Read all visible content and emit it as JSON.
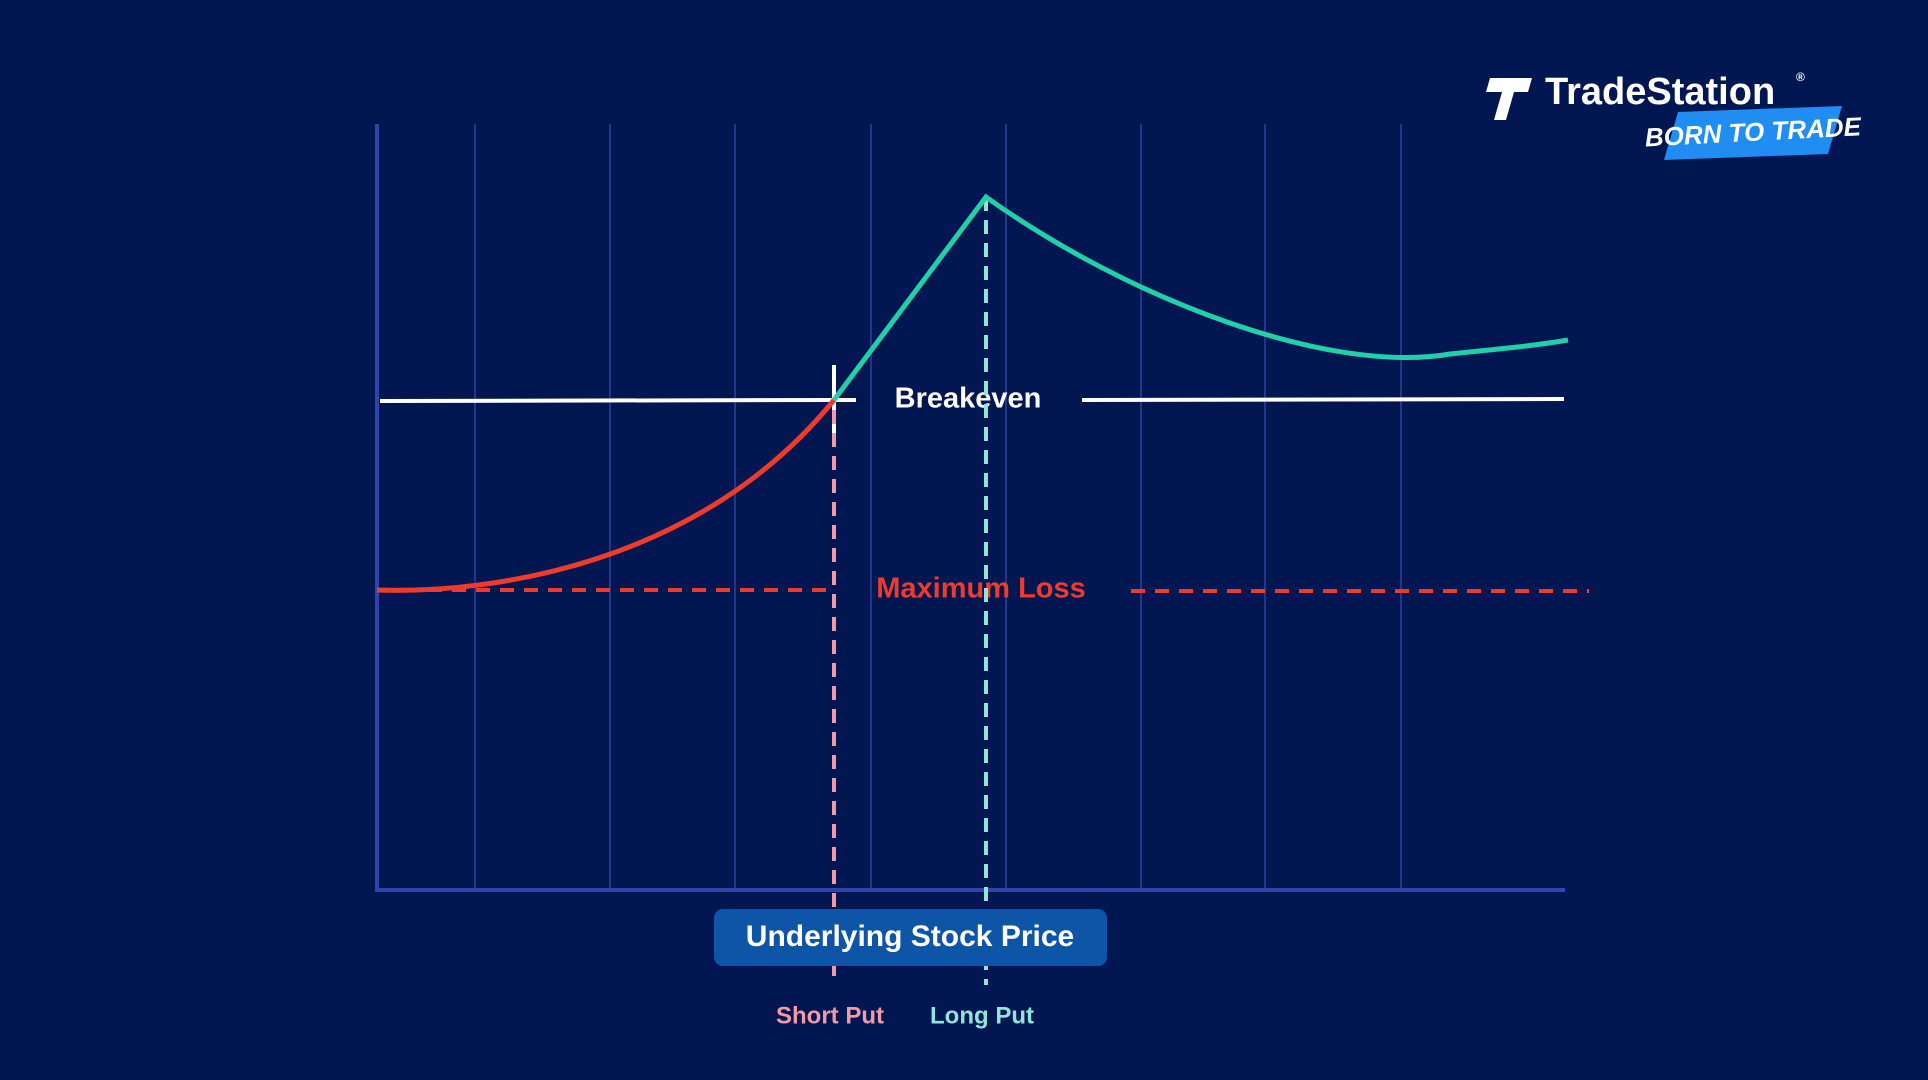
{
  "diagram": {
    "labels": {
      "breakeven": "Breakeven",
      "maximum_loss": "Maximum Loss",
      "x_axis": "Underlying Stock Price",
      "short_put": "Short Put",
      "long_put": "Long Put"
    },
    "logo": {
      "name": "TradeStation",
      "mark": "®",
      "tagline": "BORN TO TRADE"
    }
  }
}
